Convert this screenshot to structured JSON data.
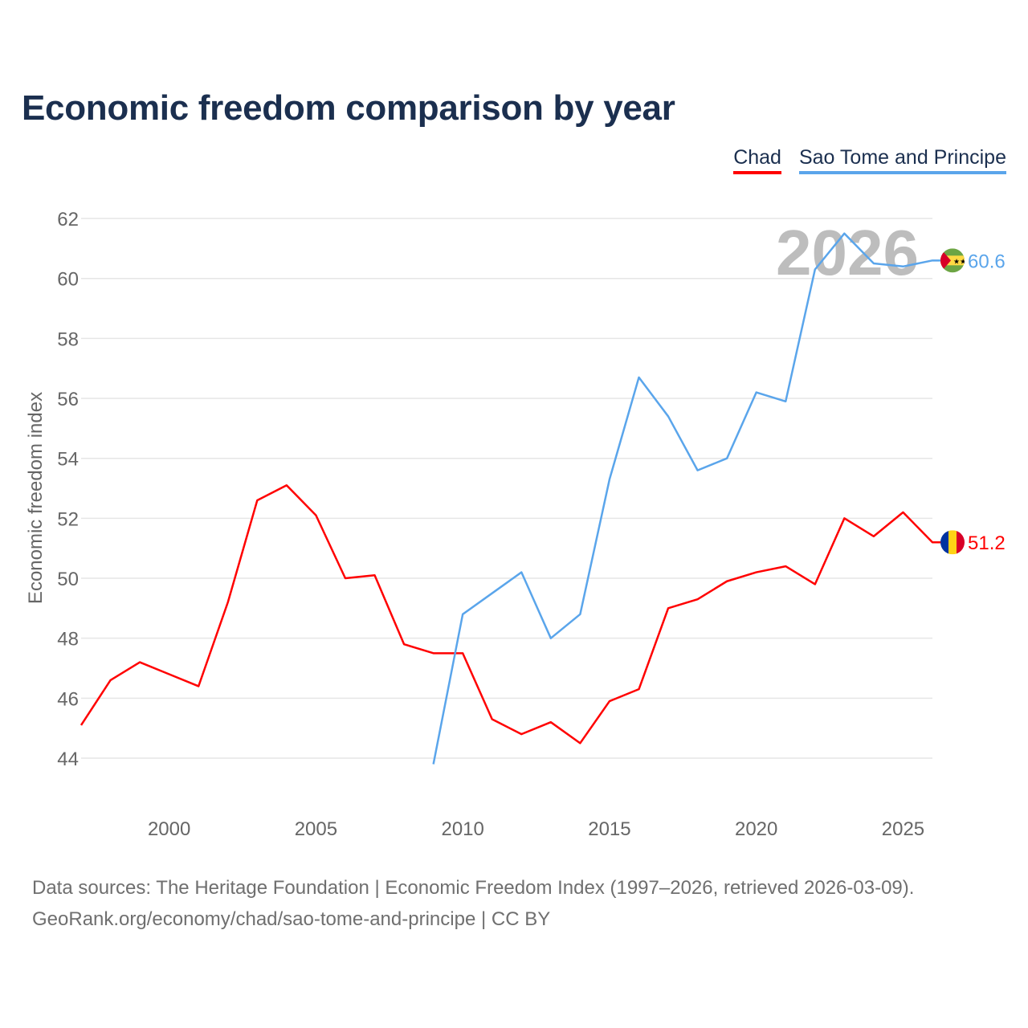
{
  "title": "Economic freedom comparison by year",
  "footer": {
    "line1": "Data sources: The Heritage Foundation | Economic Freedom Index (1997–2026, retrieved 2026-03-09).",
    "line2": "GeoRank.org/economy/chad/sao-tome-and-principe | CC BY"
  },
  "chart_data": {
    "type": "line",
    "title": "Economic freedom comparison by year",
    "xlabel": "",
    "ylabel": "Economic freedom index",
    "xlim": [
      1997,
      2026
    ],
    "ylim": [
      42.5,
      62
    ],
    "x_ticks": [
      2000,
      2005,
      2010,
      2015,
      2020,
      2025
    ],
    "y_ticks": [
      44,
      46,
      48,
      50,
      52,
      54,
      56,
      58,
      60,
      62
    ],
    "grid": true,
    "legend_position": "top-right",
    "year_watermark": "2026",
    "series": [
      {
        "name": "Chad",
        "color": "#ff0000",
        "flag": "chad-flag-icon",
        "end_label": "51.2",
        "x": [
          1997,
          1998,
          1999,
          2000,
          2001,
          2002,
          2003,
          2004,
          2005,
          2006,
          2007,
          2008,
          2009,
          2010,
          2011,
          2012,
          2013,
          2014,
          2015,
          2016,
          2017,
          2018,
          2019,
          2020,
          2021,
          2022,
          2023,
          2024,
          2025,
          2026
        ],
        "values": [
          45.1,
          46.6,
          47.2,
          46.8,
          46.4,
          49.2,
          52.6,
          53.1,
          52.1,
          50.0,
          50.1,
          47.8,
          47.5,
          47.5,
          45.3,
          44.8,
          45.2,
          44.5,
          45.9,
          46.3,
          49.0,
          49.3,
          49.9,
          50.2,
          50.4,
          49.8,
          52.0,
          51.4,
          52.2,
          51.2
        ]
      },
      {
        "name": "Sao Tome and Principe",
        "color": "#5aa5eb",
        "flag": "sao-tome-flag-icon",
        "end_label": "60.6",
        "x": [
          2009,
          2010,
          2011,
          2012,
          2013,
          2014,
          2015,
          2016,
          2017,
          2018,
          2019,
          2020,
          2021,
          2022,
          2023,
          2024,
          2025,
          2026
        ],
        "values": [
          43.8,
          48.8,
          49.5,
          50.2,
          48.0,
          48.8,
          53.3,
          56.7,
          55.4,
          53.6,
          54.0,
          56.2,
          55.9,
          60.3,
          61.5,
          60.5,
          60.4,
          60.6
        ]
      }
    ]
  }
}
